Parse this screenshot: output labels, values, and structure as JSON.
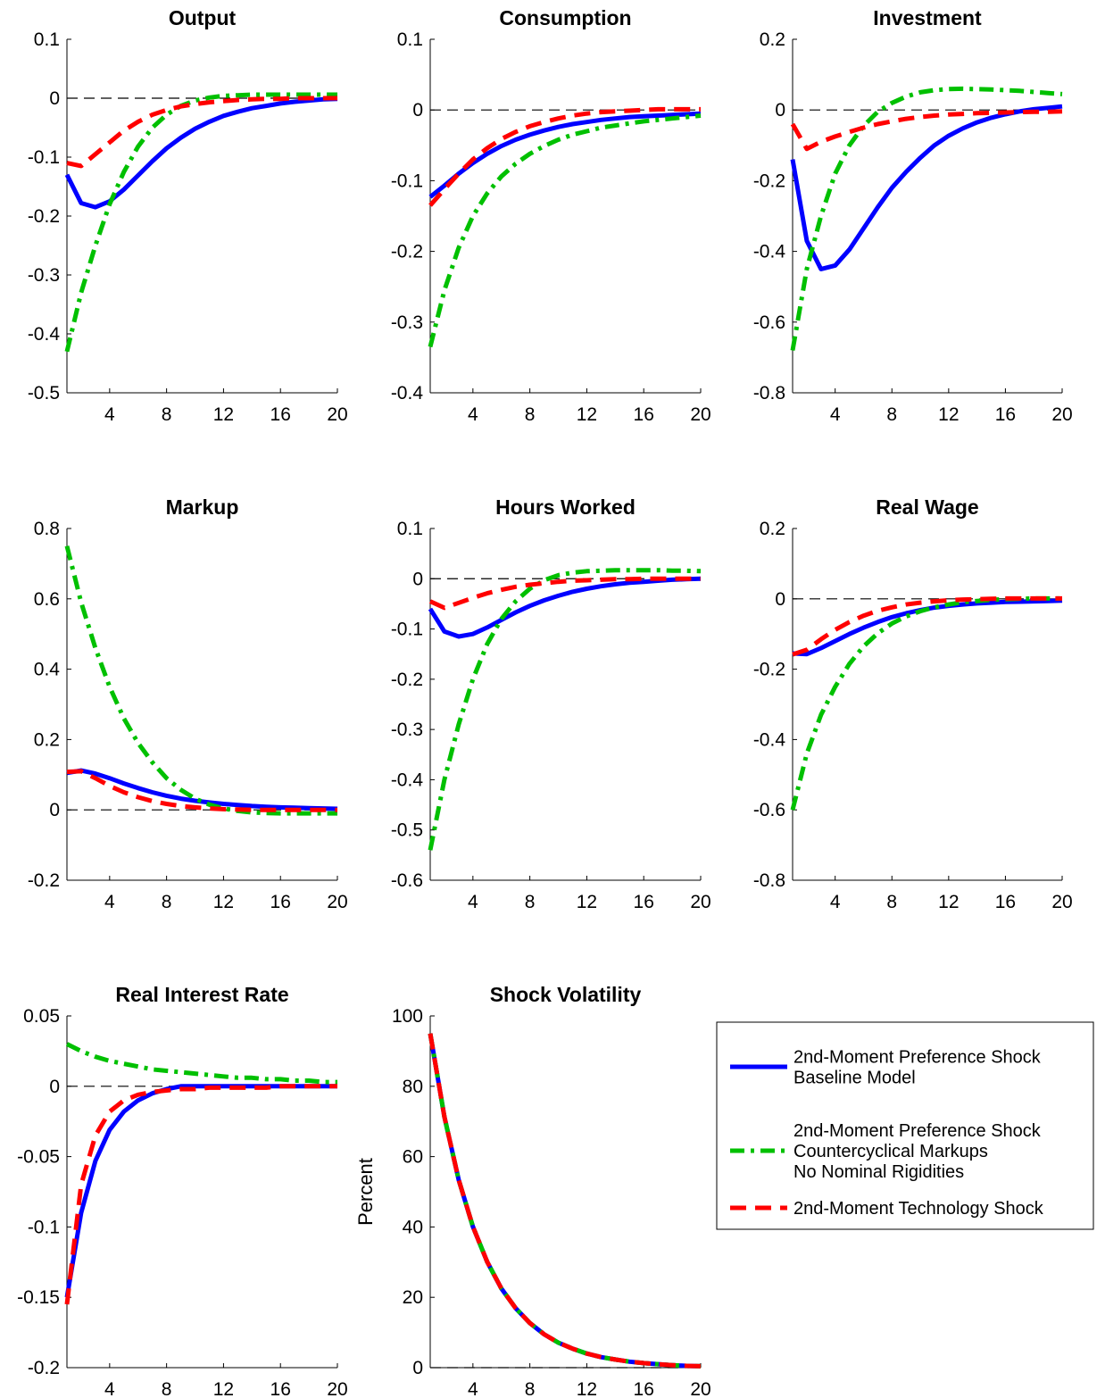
{
  "series_styles": [
    {
      "color": "#0000ff",
      "dash": "solid"
    },
    {
      "color": "#00c000",
      "dash": "dashdot"
    },
    {
      "color": "#ff0000",
      "dash": "dashed"
    }
  ],
  "legend": {
    "entries": [
      {
        "lines": [
          "2nd-Moment Preference Shock",
          "Baseline Model"
        ]
      },
      {
        "lines": [
          "2nd-Moment Preference Shock",
          "Countercyclical Markups",
          "No Nominal Rigidities"
        ]
      },
      {
        "lines": [
          "2nd-Moment Technology Shock"
        ]
      }
    ]
  },
  "chart_data": [
    {
      "type": "line",
      "title": "Output",
      "ylabel": "",
      "xlim": [
        1,
        20
      ],
      "xticks": [
        4,
        8,
        12,
        16,
        20
      ],
      "ylim": [
        -0.5,
        0.1
      ],
      "yticks": [
        -0.5,
        -0.4,
        -0.3,
        -0.2,
        -0.1,
        0,
        0.1
      ],
      "ytick_labels": [
        "-0.5",
        "-0.4",
        "-0.3",
        "-0.2",
        "-0.1",
        "0",
        "0.1"
      ],
      "x": [
        1,
        2,
        3,
        4,
        5,
        6,
        7,
        8,
        9,
        10,
        11,
        12,
        13,
        14,
        15,
        16,
        17,
        18,
        19,
        20
      ],
      "series": [
        {
          "values": [
            -0.13,
            -0.178,
            -0.185,
            -0.175,
            -0.155,
            -0.131,
            -0.107,
            -0.085,
            -0.067,
            -0.052,
            -0.04,
            -0.03,
            -0.023,
            -0.017,
            -0.013,
            -0.009,
            -0.006,
            -0.004,
            -0.002,
            -0.001
          ]
        },
        {
          "values": [
            -0.43,
            -0.33,
            -0.25,
            -0.18,
            -0.125,
            -0.082,
            -0.05,
            -0.028,
            -0.013,
            -0.004,
            0.001,
            0.004,
            0.005,
            0.006,
            0.006,
            0.006,
            0.006,
            0.006,
            0.006,
            0.006
          ]
        },
        {
          "values": [
            -0.11,
            -0.115,
            -0.095,
            -0.075,
            -0.055,
            -0.04,
            -0.028,
            -0.02,
            -0.014,
            -0.01,
            -0.007,
            -0.005,
            -0.003,
            -0.002,
            -0.001,
            -0.001,
            0,
            0,
            0,
            0
          ]
        }
      ]
    },
    {
      "type": "line",
      "title": "Consumption",
      "ylabel": "",
      "xlim": [
        1,
        20
      ],
      "xticks": [
        4,
        8,
        12,
        16,
        20
      ],
      "ylim": [
        -0.4,
        0.1
      ],
      "yticks": [
        -0.4,
        -0.3,
        -0.2,
        -0.1,
        0,
        0.1
      ],
      "ytick_labels": [
        "-0.4",
        "-0.3",
        "-0.2",
        "-0.1",
        "0",
        "0.1"
      ],
      "x": [
        1,
        2,
        3,
        4,
        5,
        6,
        7,
        8,
        9,
        10,
        11,
        12,
        13,
        14,
        15,
        16,
        17,
        18,
        19,
        20
      ],
      "series": [
        {
          "values": [
            -0.123,
            -0.107,
            -0.09,
            -0.075,
            -0.062,
            -0.051,
            -0.042,
            -0.035,
            -0.029,
            -0.024,
            -0.02,
            -0.017,
            -0.014,
            -0.012,
            -0.01,
            -0.009,
            -0.008,
            -0.007,
            -0.006,
            -0.005
          ]
        },
        {
          "values": [
            -0.335,
            -0.255,
            -0.195,
            -0.15,
            -0.118,
            -0.094,
            -0.076,
            -0.062,
            -0.051,
            -0.042,
            -0.035,
            -0.03,
            -0.025,
            -0.022,
            -0.019,
            -0.016,
            -0.014,
            -0.012,
            -0.01,
            -0.008
          ]
        },
        {
          "values": [
            -0.135,
            -0.112,
            -0.09,
            -0.07,
            -0.054,
            -0.041,
            -0.031,
            -0.023,
            -0.017,
            -0.012,
            -0.008,
            -0.005,
            -0.003,
            -0.002,
            -0.001,
            0,
            0.001,
            0.001,
            0.001,
            0.001
          ]
        }
      ]
    },
    {
      "type": "line",
      "title": "Investment",
      "ylabel": "",
      "xlim": [
        1,
        20
      ],
      "xticks": [
        4,
        8,
        12,
        16,
        20
      ],
      "ylim": [
        -0.8,
        0.2
      ],
      "yticks": [
        -0.8,
        -0.6,
        -0.4,
        -0.2,
        0,
        0.2
      ],
      "ytick_labels": [
        "-0.8",
        "-0.6",
        "-0.4",
        "-0.2",
        "0",
        "0.2"
      ],
      "x": [
        1,
        2,
        3,
        4,
        5,
        6,
        7,
        8,
        9,
        10,
        11,
        12,
        13,
        14,
        15,
        16,
        17,
        18,
        19,
        20
      ],
      "series": [
        {
          "values": [
            -0.14,
            -0.37,
            -0.45,
            -0.44,
            -0.395,
            -0.335,
            -0.275,
            -0.22,
            -0.175,
            -0.135,
            -0.1,
            -0.073,
            -0.052,
            -0.035,
            -0.022,
            -0.012,
            -0.004,
            0.002,
            0.006,
            0.01
          ]
        },
        {
          "values": [
            -0.68,
            -0.45,
            -0.3,
            -0.18,
            -0.1,
            -0.045,
            -0.005,
            0.02,
            0.038,
            0.05,
            0.056,
            0.059,
            0.06,
            0.059,
            0.058,
            0.056,
            0.054,
            0.051,
            0.048,
            0.045
          ]
        },
        {
          "values": [
            -0.04,
            -0.11,
            -0.09,
            -0.075,
            -0.062,
            -0.05,
            -0.04,
            -0.032,
            -0.025,
            -0.02,
            -0.016,
            -0.013,
            -0.011,
            -0.009,
            -0.008,
            -0.007,
            -0.006,
            -0.005,
            -0.005,
            -0.004
          ]
        }
      ]
    },
    {
      "type": "line",
      "title": "Markup",
      "ylabel": "",
      "xlim": [
        1,
        20
      ],
      "xticks": [
        4,
        8,
        12,
        16,
        20
      ],
      "ylim": [
        -0.2,
        0.8
      ],
      "yticks": [
        -0.2,
        0,
        0.2,
        0.4,
        0.6,
        0.8
      ],
      "ytick_labels": [
        "-0.2",
        "0",
        "0.2",
        "0.4",
        "0.6",
        "0.8"
      ],
      "x": [
        1,
        2,
        3,
        4,
        5,
        6,
        7,
        8,
        9,
        10,
        11,
        12,
        13,
        14,
        15,
        16,
        17,
        18,
        19,
        20
      ],
      "series": [
        {
          "values": [
            0.105,
            0.112,
            0.103,
            0.09,
            0.075,
            0.062,
            0.05,
            0.04,
            0.032,
            0.026,
            0.021,
            0.017,
            0.014,
            0.011,
            0.009,
            0.007,
            0.006,
            0.005,
            0.004,
            0.003
          ]
        },
        {
          "values": [
            0.75,
            0.59,
            0.46,
            0.35,
            0.26,
            0.19,
            0.135,
            0.09,
            0.057,
            0.032,
            0.015,
            0.004,
            -0.003,
            -0.007,
            -0.009,
            -0.01,
            -0.01,
            -0.01,
            -0.01,
            -0.01
          ]
        },
        {
          "values": [
            0.108,
            0.11,
            0.09,
            0.068,
            0.05,
            0.036,
            0.025,
            0.017,
            0.011,
            0.007,
            0.004,
            0.002,
            0.001,
            0,
            0,
            0,
            0,
            0,
            0,
            0
          ]
        }
      ]
    },
    {
      "type": "line",
      "title": "Hours Worked",
      "ylabel": "",
      "xlim": [
        1,
        20
      ],
      "xticks": [
        4,
        8,
        12,
        16,
        20
      ],
      "ylim": [
        -0.6,
        0.1
      ],
      "yticks": [
        -0.6,
        -0.5,
        -0.4,
        -0.3,
        -0.2,
        -0.1,
        0,
        0.1
      ],
      "ytick_labels": [
        "-0.6",
        "-0.5",
        "-0.4",
        "-0.3",
        "-0.2",
        "-0.1",
        "0",
        "0.1"
      ],
      "x": [
        1,
        2,
        3,
        4,
        5,
        6,
        7,
        8,
        9,
        10,
        11,
        12,
        13,
        14,
        15,
        16,
        17,
        18,
        19,
        20
      ],
      "series": [
        {
          "values": [
            -0.06,
            -0.105,
            -0.115,
            -0.11,
            -0.097,
            -0.082,
            -0.067,
            -0.054,
            -0.043,
            -0.034,
            -0.026,
            -0.02,
            -0.015,
            -0.011,
            -0.008,
            -0.006,
            -0.004,
            -0.002,
            -0.001,
            0
          ]
        },
        {
          "values": [
            -0.54,
            -0.4,
            -0.29,
            -0.2,
            -0.13,
            -0.08,
            -0.045,
            -0.02,
            -0.003,
            0.007,
            0.012,
            0.015,
            0.016,
            0.017,
            0.017,
            0.017,
            0.017,
            0.016,
            0.016,
            0.015
          ]
        },
        {
          "values": [
            -0.045,
            -0.058,
            -0.048,
            -0.038,
            -0.029,
            -0.022,
            -0.016,
            -0.012,
            -0.009,
            -0.006,
            -0.004,
            -0.003,
            -0.002,
            -0.001,
            -0.001,
            0,
            0,
            0,
            0,
            0
          ]
        }
      ]
    },
    {
      "type": "line",
      "title": "Real Wage",
      "ylabel": "",
      "xlim": [
        1,
        20
      ],
      "xticks": [
        4,
        8,
        12,
        16,
        20
      ],
      "ylim": [
        -0.8,
        0.2
      ],
      "yticks": [
        -0.8,
        -0.6,
        -0.4,
        -0.2,
        0,
        0.2
      ],
      "ytick_labels": [
        "-0.8",
        "-0.6",
        "-0.4",
        "-0.2",
        "0",
        "0.2"
      ],
      "x": [
        1,
        2,
        3,
        4,
        5,
        6,
        7,
        8,
        9,
        10,
        11,
        12,
        13,
        14,
        15,
        16,
        17,
        18,
        19,
        20
      ],
      "series": [
        {
          "values": [
            -0.155,
            -0.157,
            -0.14,
            -0.12,
            -0.1,
            -0.082,
            -0.066,
            -0.052,
            -0.041,
            -0.032,
            -0.025,
            -0.02,
            -0.016,
            -0.013,
            -0.011,
            -0.009,
            -0.008,
            -0.007,
            -0.006,
            -0.005
          ]
        },
        {
          "values": [
            -0.6,
            -0.44,
            -0.33,
            -0.25,
            -0.185,
            -0.135,
            -0.098,
            -0.07,
            -0.05,
            -0.035,
            -0.024,
            -0.016,
            -0.01,
            -0.006,
            -0.003,
            -0.001,
            0,
            0.001,
            0.001,
            0.001
          ]
        },
        {
          "values": [
            -0.158,
            -0.145,
            -0.115,
            -0.088,
            -0.066,
            -0.048,
            -0.034,
            -0.024,
            -0.016,
            -0.011,
            -0.007,
            -0.004,
            -0.002,
            -0.001,
            0,
            0.001,
            0.001,
            0.001,
            0.001,
            0.001
          ]
        }
      ]
    },
    {
      "type": "line",
      "title": "Real Interest Rate",
      "ylabel": "",
      "xlim": [
        1,
        20
      ],
      "xticks": [
        4,
        8,
        12,
        16,
        20
      ],
      "ylim": [
        -0.2,
        0.05
      ],
      "yticks": [
        -0.2,
        -0.15,
        -0.1,
        -0.05,
        0,
        0.05
      ],
      "ytick_labels": [
        "-0.2",
        "-0.15",
        "-0.1",
        "-0.05",
        "0",
        "0.05"
      ],
      "x": [
        1,
        2,
        3,
        4,
        5,
        6,
        7,
        8,
        9,
        10,
        11,
        12,
        13,
        14,
        15,
        16,
        17,
        18,
        19,
        20
      ],
      "series": [
        {
          "values": [
            -0.15,
            -0.09,
            -0.053,
            -0.031,
            -0.018,
            -0.01,
            -0.005,
            -0.002,
            0,
            0,
            0,
            0,
            0,
            0,
            0,
            0,
            0,
            0,
            0,
            0
          ]
        },
        {
          "values": [
            0.03,
            0.025,
            0.021,
            0.018,
            0.016,
            0.014,
            0.012,
            0.011,
            0.01,
            0.009,
            0.008,
            0.007,
            0.006,
            0.006,
            0.005,
            0.005,
            0.004,
            0.004,
            0.003,
            0.003
          ]
        },
        {
          "values": [
            -0.155,
            -0.07,
            -0.035,
            -0.018,
            -0.01,
            -0.006,
            -0.004,
            -0.003,
            -0.002,
            -0.002,
            -0.001,
            -0.001,
            -0.001,
            -0.001,
            -0.001,
            0,
            0,
            0,
            0,
            0
          ]
        }
      ]
    },
    {
      "type": "line",
      "title": "Shock Volatility",
      "ylabel": "Percent",
      "xlim": [
        1,
        20
      ],
      "xticks": [
        4,
        8,
        12,
        16,
        20
      ],
      "ylim": [
        0,
        100
      ],
      "yticks": [
        0,
        20,
        40,
        60,
        80,
        100
      ],
      "ytick_labels": [
        "0",
        "20",
        "40",
        "60",
        "80",
        "100"
      ],
      "x": [
        1,
        2,
        3,
        4,
        5,
        6,
        7,
        8,
        9,
        10,
        11,
        12,
        13,
        14,
        15,
        16,
        17,
        18,
        19,
        20
      ],
      "series": [
        {
          "values": [
            95,
            71.3,
            53.4,
            40.1,
            30.1,
            22.5,
            16.9,
            12.7,
            9.5,
            7.1,
            5.4,
            4,
            3,
            2.3,
            1.7,
            1.3,
            1,
            0.7,
            0.5,
            0.4
          ]
        },
        {
          "values": [
            95,
            71.3,
            53.4,
            40.1,
            30.1,
            22.5,
            16.9,
            12.7,
            9.5,
            7.1,
            5.4,
            4,
            3,
            2.3,
            1.7,
            1.3,
            1,
            0.7,
            0.5,
            0.4
          ]
        },
        {
          "values": [
            95,
            71.3,
            53.4,
            40.1,
            30.1,
            22.5,
            16.9,
            12.7,
            9.5,
            7.1,
            5.4,
            4,
            3,
            2.3,
            1.7,
            1.3,
            1,
            0.7,
            0.5,
            0.4
          ]
        }
      ]
    }
  ]
}
